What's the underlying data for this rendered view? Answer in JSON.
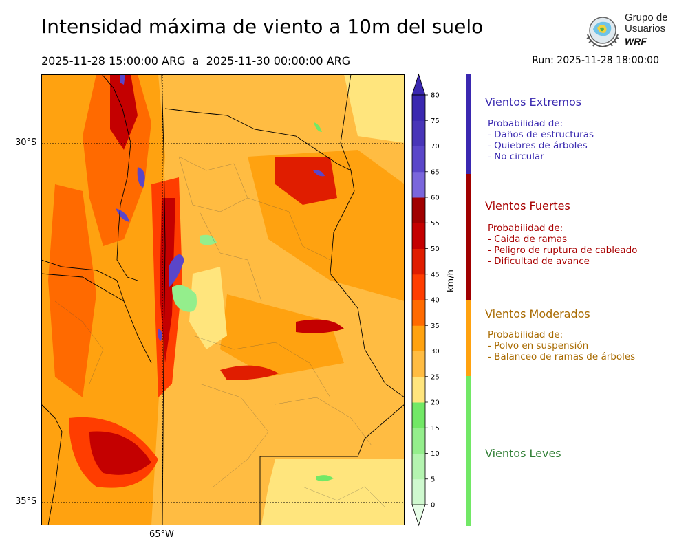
{
  "header": {
    "title": "Intensidad máxima de viento a 10m del suelo",
    "subtitle": "2025-11-28 15:00:00 ARG  a  2025-11-30 00:00:00 ARG",
    "run": "Run: 2025-11-28 18:00:00"
  },
  "logo": {
    "line1": "Grupo de",
    "line2": "Usuarios",
    "line3": "WRF"
  },
  "map": {
    "lat_labels": [
      "30°S",
      "35°S"
    ],
    "lon_labels": [
      "65°W"
    ]
  },
  "colorbar": {
    "unit": "km/h",
    "ticks": [
      "0",
      "5",
      "10",
      "15",
      "20",
      "25",
      "30",
      "35",
      "40",
      "45",
      "50",
      "55",
      "60",
      "65",
      "70",
      "75",
      "80"
    ],
    "colors": [
      "#e6fde6",
      "#cff9cf",
      "#b4f4b0",
      "#94ee8c",
      "#72e866",
      "#ffe57d",
      "#ffbc42",
      "#ffa210",
      "#ff6a00",
      "#ff3d00",
      "#e01d00",
      "#c40000",
      "#a00000",
      "#7a66dc",
      "#5a46c9",
      "#4835b8",
      "#3a28b0"
    ]
  },
  "categories": [
    {
      "title": "Vientos Extremos",
      "color": "#3a2ab0",
      "lines": [
        "Probabilidad de:",
        "- Daños de estructuras",
        "- Quiebres de árboles",
        "- No circular"
      ]
    },
    {
      "title": "Vientos Fuertes",
      "color": "#a80000",
      "lines": [
        "Probabilidad de:",
        "- Caida de ramas",
        "- Peligro de ruptura de cableado",
        "- Dificultad de avance"
      ]
    },
    {
      "title": "Vientos Moderados",
      "color": "#a86a00",
      "lines": [
        "Probabilidad de:",
        "- Polvo en suspensión",
        "- Balanceo de ramas de árboles"
      ]
    },
    {
      "title": "Vientos Leves",
      "color": "#2e7d32",
      "lines": []
    }
  ],
  "side_bar_colors": [
    "#3a28b0",
    "#a00000",
    "#ffa210",
    "#72e866"
  ]
}
